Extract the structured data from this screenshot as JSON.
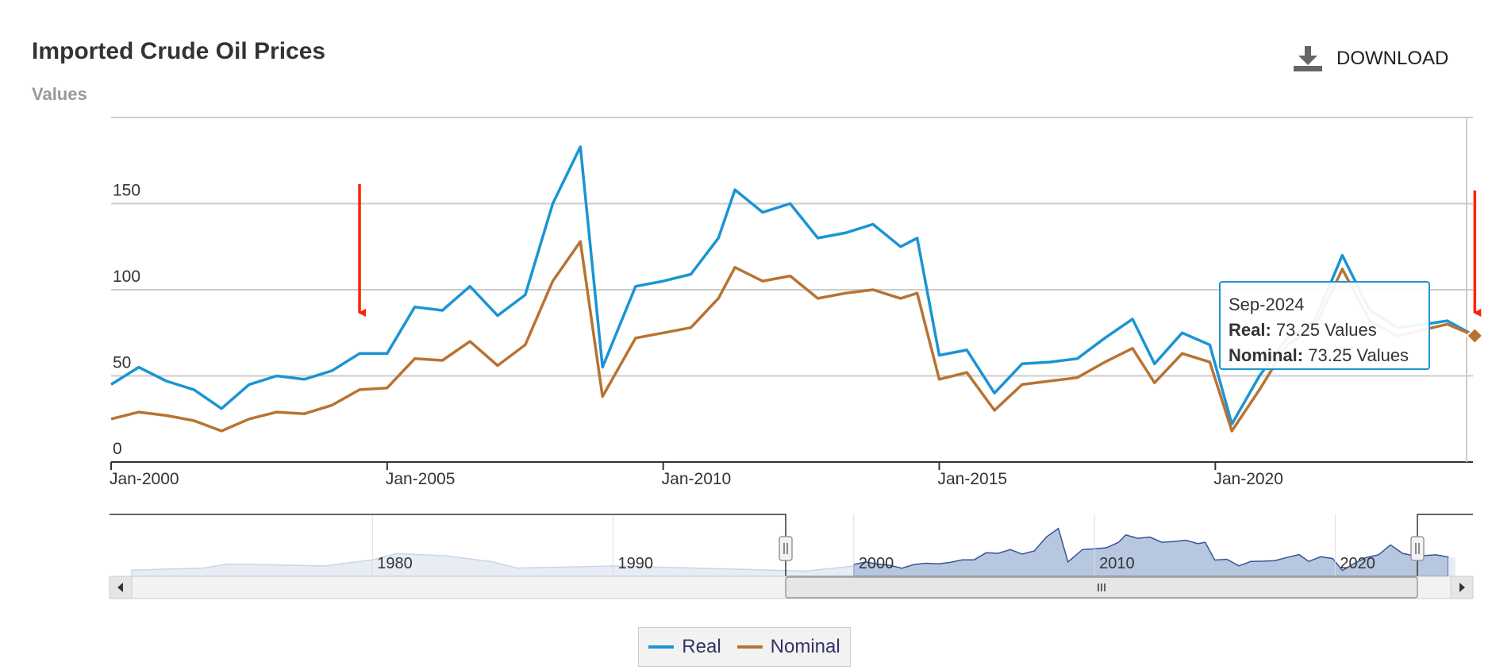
{
  "header": {
    "title": "Imported Crude Oil Prices",
    "subtitle": "Values",
    "download_label": "DOWNLOAD"
  },
  "colors": {
    "real": "#1a95d3",
    "nominal": "#b87333",
    "annotation": "#ff2200",
    "navigator_fill": "#b8c7e0"
  },
  "tooltip": {
    "date": "Sep-2024",
    "real_label": "Real:",
    "real_value": "73.25 Values",
    "nominal_label": "Nominal:",
    "nominal_value": "73.25 Values"
  },
  "legend": {
    "real": "Real",
    "nominal": "Nominal"
  },
  "navigator": {
    "labels": [
      "1980",
      "1990",
      "2000",
      "2010",
      "2020"
    ],
    "range": [
      "Jan-2000",
      "Sep-2024"
    ]
  },
  "chart_data": {
    "type": "line",
    "title": "Imported Crude Oil Prices",
    "ylabel": "Values",
    "ylim": [
      0,
      200
    ],
    "xlim": [
      "2000-01",
      "2024-09"
    ],
    "yticks": [
      0,
      50,
      100,
      150
    ],
    "xticks": [
      "Jan-2000",
      "Jan-2005",
      "Jan-2010",
      "Jan-2015",
      "Jan-2020"
    ],
    "grid": true,
    "legend_position": "bottom",
    "x": [
      2000.0,
      2000.5,
      2001.0,
      2001.5,
      2002.0,
      2002.5,
      2003.0,
      2003.5,
      2004.0,
      2004.5,
      2005.0,
      2005.5,
      2006.0,
      2006.5,
      2007.0,
      2007.5,
      2008.0,
      2008.5,
      2008.9,
      2009.5,
      2010.0,
      2010.5,
      2011.0,
      2011.3,
      2011.8,
      2012.3,
      2012.8,
      2013.3,
      2013.8,
      2014.3,
      2014.6,
      2015.0,
      2015.5,
      2016.0,
      2016.5,
      2017.0,
      2017.5,
      2018.0,
      2018.5,
      2018.9,
      2019.4,
      2019.9,
      2020.3,
      2020.8,
      2021.3,
      2021.8,
      2022.3,
      2022.8,
      2023.3,
      2023.8,
      2024.2,
      2024.7
    ],
    "series": [
      {
        "name": "Real",
        "values": [
          45,
          55,
          47,
          42,
          31,
          45,
          50,
          48,
          53,
          63,
          63,
          90,
          88,
          102,
          85,
          97,
          150,
          183,
          55,
          102,
          105,
          109,
          130,
          158,
          145,
          150,
          130,
          133,
          138,
          125,
          130,
          62,
          65,
          40,
          57,
          58,
          60,
          72,
          83,
          57,
          75,
          68,
          22,
          50,
          72,
          82,
          120,
          88,
          78,
          80,
          82,
          73.25
        ]
      },
      {
        "name": "Nominal",
        "values": [
          25,
          29,
          27,
          24,
          18,
          25,
          29,
          28,
          33,
          42,
          43,
          60,
          59,
          70,
          56,
          68,
          105,
          128,
          38,
          72,
          75,
          78,
          95,
          113,
          105,
          108,
          95,
          98,
          100,
          95,
          98,
          48,
          52,
          30,
          45,
          47,
          49,
          58,
          66,
          46,
          63,
          58,
          18,
          42,
          68,
          78,
          112,
          82,
          73,
          77,
          80,
          73.25
        ]
      }
    ],
    "annotations": [
      {
        "type": "arrow",
        "x": 2004.5
      },
      {
        "type": "arrow",
        "x": 2024.7
      }
    ]
  }
}
